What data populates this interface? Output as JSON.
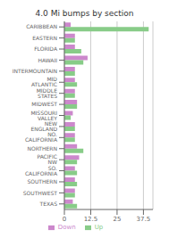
{
  "chart_data": {
    "type": "bar",
    "orientation": "horizontal",
    "title": "4.0 Mi bumps by section",
    "categories": [
      "CARIBBEAN",
      "EASTERN",
      "FLORIDA",
      "HAWAII",
      "INTERMOUNTAIN",
      "MID ATLANTIC",
      "MIDDLE STATES",
      "MIDWEST",
      "MISSOURI VALLEY",
      "NEW ENGLAND",
      "NO. CALIFORNIA",
      "NORTHERN",
      "PACIFIC NW",
      "SO. CALIFORNIA",
      "SOUTHERN",
      "SOUTHWEST",
      "TEXAS"
    ],
    "series": [
      {
        "name": "Down",
        "color": "#cc88cc",
        "values": [
          3,
          5,
          5,
          11,
          5,
          5,
          5,
          6,
          4,
          5,
          5,
          6,
          7,
          5,
          5,
          5,
          4
        ]
      },
      {
        "name": "Up",
        "color": "#88cc88",
        "values": [
          40,
          5,
          8,
          9,
          5,
          6,
          5,
          6,
          3,
          5,
          5,
          9,
          6,
          6,
          6,
          5,
          6
        ]
      }
    ],
    "xlim": [
      0,
      42
    ],
    "xticks": [
      0,
      12.5,
      25,
      37.5
    ],
    "grid": true,
    "legend": "bottom"
  }
}
